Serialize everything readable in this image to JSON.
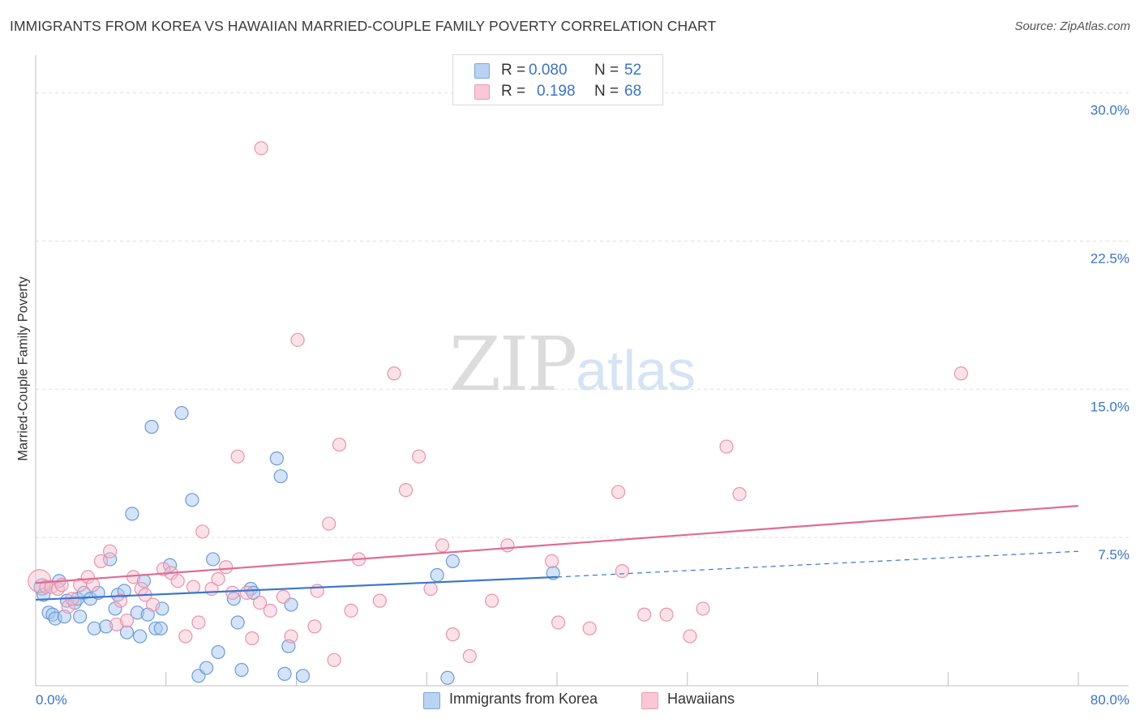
{
  "title": "IMMIGRANTS FROM KOREA VS HAWAIIAN MARRIED-COUPLE FAMILY POVERTY CORRELATION CHART",
  "source": "Source: ZipAtlas.com",
  "watermark": {
    "zip": "ZIP",
    "atlas": "atlas"
  },
  "legend": {
    "rows": [
      {
        "r_label": "R = ",
        "r_value": "0.080",
        "n_label": "N = ",
        "n_value": "52"
      },
      {
        "r_label": "R = ",
        "r_value": "0.198",
        "n_label": "N = ",
        "n_value": "68"
      }
    ]
  },
  "chart_data": {
    "type": "scatter",
    "title": "IMMIGRANTS FROM KOREA VS HAWAIIAN MARRIED-COUPLE FAMILY POVERTY CORRELATION CHART",
    "xlabel": "",
    "ylabel": "Married-Couple Family Poverty",
    "xlim": [
      0,
      80
    ],
    "ylim": [
      0,
      31.5
    ],
    "x_tick_labels": [
      "0.0%",
      "80.0%"
    ],
    "y_ticks": [
      7.5,
      15.0,
      22.5,
      30.0
    ],
    "y_tick_labels": [
      "7.5%",
      "15.0%",
      "22.5%",
      "30.0%"
    ],
    "grid": true,
    "colors": {
      "korea_fill": "#a9c8f0",
      "korea_stroke": "#6c9bd6",
      "korea_line": "#3a77cc",
      "hawaii_fill": "#f7bccd",
      "hawaii_stroke": "#e993ad",
      "hawaii_line": "#e06b93",
      "axis_text": "#3b73c5"
    },
    "series": [
      {
        "name": "Immigrants from Korea",
        "R": 0.08,
        "N": 52,
        "trend": {
          "x0": 0,
          "y0": 4.35,
          "x1": 40,
          "y1": 5.5,
          "dash_to_x": 80,
          "dash_to_y": 6.8
        },
        "points": [
          [
            0.5,
            5.0
          ],
          [
            0.6,
            4.6
          ],
          [
            1.0,
            3.7
          ],
          [
            1.3,
            3.6
          ],
          [
            1.5,
            3.4
          ],
          [
            1.8,
            5.3
          ],
          [
            2.2,
            3.5
          ],
          [
            2.4,
            4.3
          ],
          [
            3.0,
            4.2
          ],
          [
            3.2,
            4.4
          ],
          [
            3.4,
            3.5
          ],
          [
            3.7,
            4.7
          ],
          [
            4.2,
            4.4
          ],
          [
            4.5,
            2.9
          ],
          [
            4.8,
            4.7
          ],
          [
            5.4,
            3.0
          ],
          [
            5.7,
            6.4
          ],
          [
            6.1,
            3.9
          ],
          [
            6.3,
            4.6
          ],
          [
            6.8,
            4.8
          ],
          [
            7.0,
            2.7
          ],
          [
            7.4,
            8.7
          ],
          [
            7.8,
            3.7
          ],
          [
            8.0,
            2.5
          ],
          [
            8.3,
            5.3
          ],
          [
            8.6,
            3.6
          ],
          [
            8.9,
            13.1
          ],
          [
            9.2,
            2.9
          ],
          [
            9.6,
            2.9
          ],
          [
            9.7,
            3.9
          ],
          [
            10.3,
            6.1
          ],
          [
            11.2,
            13.8
          ],
          [
            12.0,
            9.4
          ],
          [
            12.5,
            0.5
          ],
          [
            13.1,
            0.9
          ],
          [
            13.6,
            6.4
          ],
          [
            14.0,
            1.7
          ],
          [
            15.2,
            4.4
          ],
          [
            15.5,
            3.2
          ],
          [
            15.8,
            0.8
          ],
          [
            16.5,
            4.9
          ],
          [
            16.7,
            4.7
          ],
          [
            18.5,
            11.5
          ],
          [
            18.8,
            10.6
          ],
          [
            19.1,
            0.6
          ],
          [
            19.4,
            2.0
          ],
          [
            19.6,
            4.1
          ],
          [
            20.5,
            0.5
          ],
          [
            32.0,
            6.3
          ],
          [
            31.6,
            0.4
          ],
          [
            30.8,
            5.6
          ],
          [
            39.7,
            5.7
          ]
        ]
      },
      {
        "name": "Hawaiians",
        "R": 0.198,
        "N": 68,
        "trend": {
          "x0": 0,
          "y0": 5.2,
          "x1": 80,
          "y1": 9.1
        },
        "points": [
          [
            0.3,
            5.3
          ],
          [
            0.8,
            5.0
          ],
          [
            1.2,
            5.0
          ],
          [
            1.7,
            4.9
          ],
          [
            2.0,
            5.1
          ],
          [
            2.5,
            4.0
          ],
          [
            2.8,
            4.4
          ],
          [
            3.4,
            5.1
          ],
          [
            4.0,
            5.5
          ],
          [
            4.4,
            5.1
          ],
          [
            5.0,
            6.3
          ],
          [
            5.7,
            6.8
          ],
          [
            6.2,
            3.1
          ],
          [
            6.5,
            4.3
          ],
          [
            7.0,
            3.3
          ],
          [
            7.5,
            5.5
          ],
          [
            8.1,
            4.9
          ],
          [
            8.4,
            4.6
          ],
          [
            9.0,
            4.1
          ],
          [
            9.8,
            5.9
          ],
          [
            10.4,
            5.7
          ],
          [
            10.9,
            5.3
          ],
          [
            11.5,
            2.5
          ],
          [
            12.1,
            5.0
          ],
          [
            12.5,
            3.2
          ],
          [
            12.8,
            7.8
          ],
          [
            13.5,
            4.9
          ],
          [
            14.0,
            5.4
          ],
          [
            14.6,
            6.0
          ],
          [
            15.1,
            4.7
          ],
          [
            15.5,
            11.6
          ],
          [
            16.2,
            4.7
          ],
          [
            16.6,
            2.4
          ],
          [
            17.2,
            4.2
          ],
          [
            17.3,
            27.2
          ],
          [
            18.0,
            3.8
          ],
          [
            19.0,
            4.5
          ],
          [
            19.6,
            2.5
          ],
          [
            20.1,
            17.5
          ],
          [
            21.4,
            3.0
          ],
          [
            21.6,
            4.8
          ],
          [
            22.5,
            8.2
          ],
          [
            22.9,
            1.3
          ],
          [
            23.3,
            12.2
          ],
          [
            24.2,
            3.8
          ],
          [
            24.8,
            6.4
          ],
          [
            26.4,
            4.3
          ],
          [
            27.5,
            15.8
          ],
          [
            28.4,
            9.9
          ],
          [
            29.4,
            11.6
          ],
          [
            30.3,
            4.9
          ],
          [
            31.2,
            7.1
          ],
          [
            32.0,
            2.6
          ],
          [
            33.3,
            1.5
          ],
          [
            35.0,
            4.3
          ],
          [
            36.2,
            7.1
          ],
          [
            39.6,
            6.3
          ],
          [
            40.1,
            3.2
          ],
          [
            42.5,
            2.9
          ],
          [
            44.7,
            9.8
          ],
          [
            45.0,
            5.8
          ],
          [
            46.7,
            3.6
          ],
          [
            48.4,
            3.6
          ],
          [
            50.2,
            2.5
          ],
          [
            51.2,
            3.9
          ],
          [
            53.0,
            12.1
          ],
          [
            54.0,
            9.7
          ],
          [
            71.0,
            15.8
          ]
        ]
      }
    ]
  },
  "bottom_legend": [
    {
      "label": "Immigrants from Korea"
    },
    {
      "label": "Hawaiians"
    }
  ]
}
